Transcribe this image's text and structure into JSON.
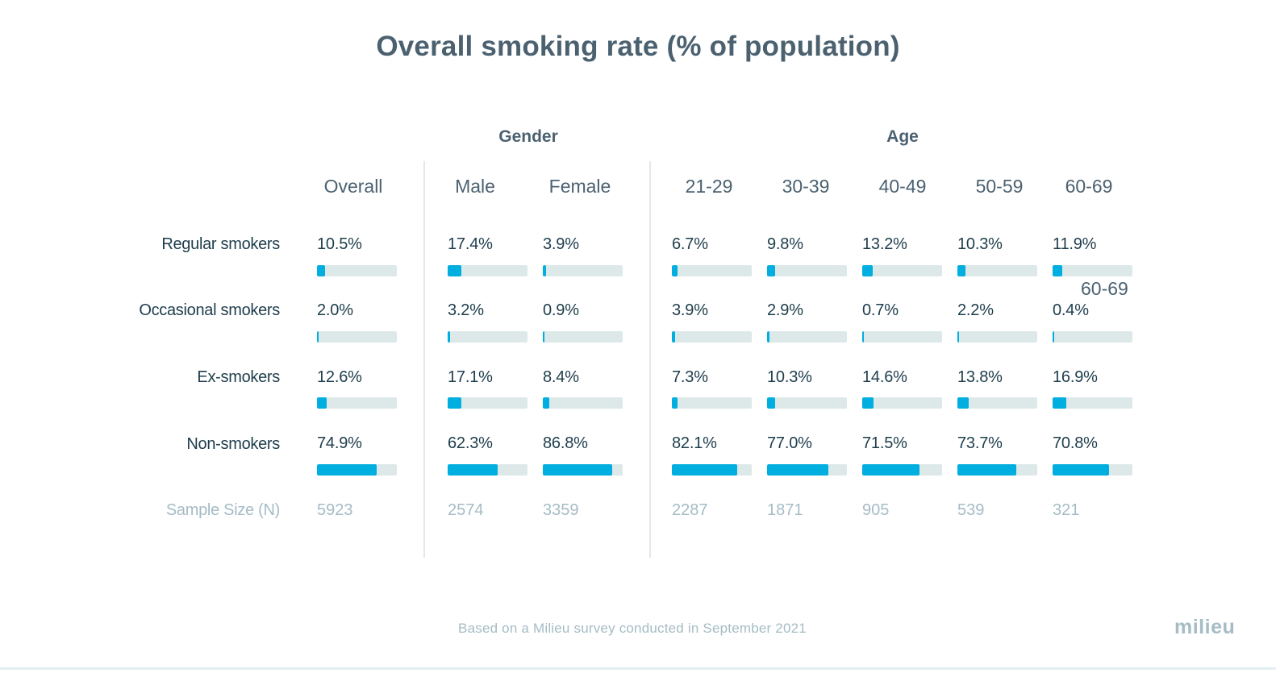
{
  "title": "Overall smoking rate  (% of population)",
  "groups": {
    "gender": "Gender",
    "age": "Age"
  },
  "overlay_label": "60-69",
  "footer": "Based on a Milieu survey conducted in September 2021",
  "brand": "milieu",
  "colors": {
    "bar": "#00aee0",
    "track": "#dde8e8",
    "heading": "#4b6170",
    "muted": "#a5bcc5"
  },
  "chart_data": {
    "type": "table",
    "title": "Overall smoking rate  (% of population)",
    "columns": [
      "Overall",
      "Male",
      "Female",
      "21-29",
      "30-39",
      "40-49",
      "50-59",
      "60-69"
    ],
    "rows": [
      {
        "label": "Regular smokers",
        "values": [
          10.5,
          17.4,
          3.9,
          6.7,
          9.8,
          13.2,
          10.3,
          11.9
        ],
        "display": [
          "10.5%",
          "17.4%",
          "3.9%",
          "6.7%",
          "9.8%",
          "13.2%",
          "10.3%",
          "11.9%"
        ]
      },
      {
        "label": "Occasional smokers",
        "values": [
          2.0,
          3.2,
          0.9,
          3.9,
          2.9,
          0.7,
          2.2,
          0.4
        ],
        "display": [
          "2.0%",
          "3.2%",
          "0.9%",
          "3.9%",
          "2.9%",
          "0.7%",
          "2.2%",
          "0.4%"
        ]
      },
      {
        "label": "Ex-smokers",
        "values": [
          12.6,
          17.1,
          8.4,
          7.3,
          10.3,
          14.6,
          13.8,
          16.9
        ],
        "display": [
          "12.6%",
          "17.1%",
          "8.4%",
          "7.3%",
          "10.3%",
          "14.6%",
          "13.8%",
          "16.9%"
        ]
      },
      {
        "label": "Non-smokers",
        "values": [
          74.9,
          62.3,
          86.8,
          82.1,
          77.0,
          71.5,
          73.7,
          70.8
        ],
        "display": [
          "74.9%",
          "62.3%",
          "86.8%",
          "82.1%",
          "77.0%",
          "71.5%",
          "73.7%",
          "70.8%"
        ]
      }
    ],
    "sample_size": {
      "label": "Sample Size (N)",
      "values": [
        "5923",
        "2574",
        "3359",
        "2287",
        "1871",
        "905",
        "539",
        "321"
      ]
    },
    "bar_scale_max": 100
  }
}
